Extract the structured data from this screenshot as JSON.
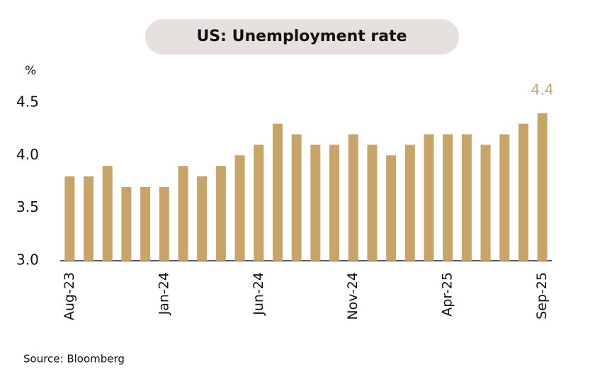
{
  "chart_data": {
    "type": "bar",
    "title": "US: Unemployment rate",
    "y_label": "%",
    "source": "Source: Bloomberg",
    "categories": [
      "Aug-23",
      null,
      null,
      null,
      null,
      "Jan-24",
      null,
      null,
      null,
      null,
      "Jun-24",
      null,
      null,
      null,
      null,
      "Nov-24",
      null,
      null,
      null,
      null,
      "Apr-25",
      null,
      null,
      null,
      null,
      "Sep-25"
    ],
    "values": [
      3.8,
      3.8,
      3.9,
      3.7,
      3.7,
      3.7,
      3.9,
      3.8,
      3.9,
      4.0,
      4.1,
      4.3,
      4.2,
      4.1,
      4.1,
      4.2,
      4.1,
      4.0,
      4.1,
      4.2,
      4.2,
      4.2,
      4.1,
      4.2,
      4.3,
      4.4
    ],
    "value_labels": [
      null,
      null,
      null,
      null,
      null,
      null,
      null,
      null,
      null,
      null,
      null,
      null,
      null,
      null,
      null,
      null,
      null,
      null,
      null,
      null,
      null,
      null,
      null,
      null,
      null,
      "4.4"
    ],
    "color": "#c9a469",
    "ylim": [
      3.0,
      4.6
    ],
    "yticks": [
      {
        "value": 3.0,
        "label": "3.0"
      },
      3.5,
      {
        "value": 4.0,
        "label": "4.0"
      },
      4.5
    ],
    "grid": false
  }
}
